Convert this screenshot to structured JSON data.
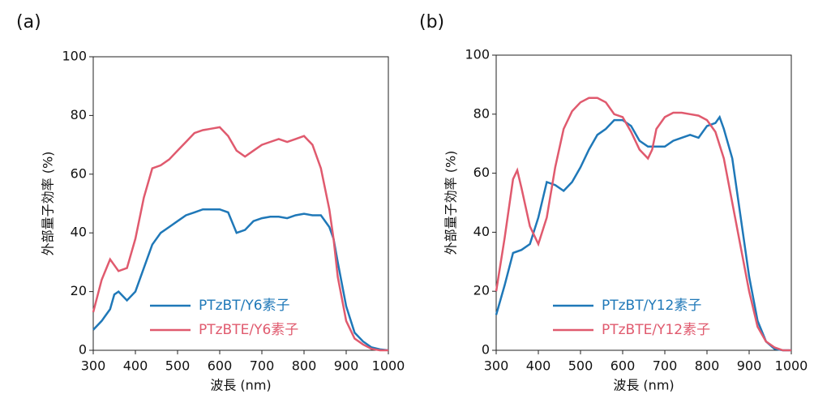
{
  "chart_data": [
    {
      "type": "line",
      "panel": "(a)",
      "xlabel": "波長 (nm)",
      "ylabel": "外部量子効率 (%)",
      "xlim": [
        300,
        1000
      ],
      "xticks": [
        300,
        400,
        500,
        600,
        700,
        800,
        900,
        1000
      ],
      "ylim": [
        0,
        100
      ],
      "yticks": [
        0,
        20,
        40,
        60,
        80,
        100
      ],
      "legend": "lower center",
      "series": [
        {
          "name": "PTzBT/Y6素子",
          "color": "#1f78b8",
          "x": [
            300,
            320,
            340,
            350,
            360,
            380,
            400,
            420,
            440,
            460,
            480,
            500,
            520,
            540,
            560,
            580,
            600,
            620,
            640,
            660,
            680,
            700,
            720,
            740,
            760,
            780,
            800,
            820,
            840,
            860,
            870,
            880,
            900,
            920,
            940,
            960,
            980,
            1000
          ],
          "values": [
            7,
            10,
            14,
            19,
            20,
            17,
            20,
            28,
            36,
            40,
            42,
            44,
            46,
            47,
            48,
            48,
            48,
            47,
            40,
            41,
            44,
            45,
            45.5,
            45.5,
            45,
            46,
            46.5,
            46,
            46,
            42,
            38,
            30,
            15,
            6,
            3,
            1,
            0.3,
            0
          ]
        },
        {
          "name": "PTzBTE/Y6素子",
          "color": "#e05a6e",
          "x": [
            300,
            320,
            340,
            360,
            380,
            400,
            420,
            440,
            460,
            480,
            500,
            520,
            540,
            560,
            580,
            600,
            620,
            640,
            660,
            680,
            700,
            720,
            740,
            760,
            780,
            800,
            820,
            840,
            860,
            870,
            880,
            900,
            920,
            940,
            960,
            980,
            1000
          ],
          "values": [
            13,
            24,
            31,
            27,
            28,
            38,
            52,
            62,
            63,
            65,
            68,
            71,
            74,
            75,
            75.5,
            76,
            73,
            68,
            66,
            68,
            70,
            71,
            72,
            71,
            72,
            73,
            70,
            62,
            48,
            38,
            25,
            10,
            4,
            2,
            0.5,
            0,
            0
          ]
        }
      ]
    },
    {
      "type": "line",
      "panel": "(b)",
      "xlabel": "波長 (nm)",
      "ylabel": "外部量子効率 (%)",
      "xlim": [
        300,
        1000
      ],
      "xticks": [
        300,
        400,
        500,
        600,
        700,
        800,
        900,
        1000
      ],
      "ylim": [
        0,
        100
      ],
      "yticks": [
        0,
        20,
        40,
        60,
        80,
        100
      ],
      "legend": "lower center",
      "series": [
        {
          "name": "PTzBT/Y12素子",
          "color": "#1f78b8",
          "x": [
            300,
            320,
            340,
            360,
            380,
            400,
            420,
            440,
            460,
            480,
            500,
            520,
            540,
            560,
            580,
            600,
            620,
            640,
            660,
            680,
            700,
            720,
            740,
            760,
            780,
            800,
            820,
            830,
            840,
            860,
            880,
            900,
            920,
            940,
            960,
            980,
            1000
          ],
          "values": [
            12,
            22,
            33,
            34,
            36,
            45,
            57,
            56,
            54,
            57,
            62,
            68,
            73,
            75,
            78,
            78,
            76,
            71,
            69,
            69,
            69,
            71,
            72,
            73,
            72,
            76,
            77,
            79,
            75,
            65,
            45,
            25,
            10,
            3,
            0.5,
            0,
            0
          ]
        },
        {
          "name": "PTzBTE/Y12素子",
          "color": "#e05a6e",
          "x": [
            300,
            320,
            340,
            350,
            360,
            380,
            400,
            420,
            440,
            460,
            480,
            500,
            520,
            540,
            560,
            580,
            600,
            620,
            640,
            660,
            670,
            680,
            700,
            720,
            740,
            760,
            780,
            800,
            820,
            840,
            860,
            880,
            900,
            920,
            940,
            960,
            980,
            1000
          ],
          "values": [
            20,
            38,
            58,
            61,
            55,
            42,
            36,
            45,
            62,
            75,
            81,
            84,
            85.5,
            85.5,
            84,
            80,
            79,
            74,
            68,
            65,
            68,
            75,
            79,
            80.5,
            80.5,
            80,
            79.5,
            78,
            74,
            65,
            50,
            35,
            20,
            8,
            3,
            1,
            0,
            0
          ]
        }
      ]
    }
  ]
}
